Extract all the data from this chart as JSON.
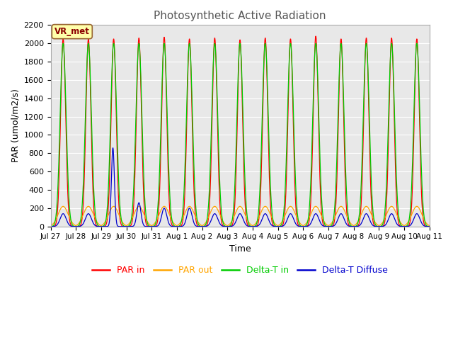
{
  "title": "Photosynthetic Active Radiation",
  "xlabel": "Time",
  "ylabel": "PAR (umol/m2/s)",
  "ylim": [
    0,
    2200
  ],
  "yticks": [
    0,
    200,
    400,
    600,
    800,
    1000,
    1200,
    1400,
    1600,
    1800,
    2000,
    2200
  ],
  "fig_bg": "#ffffff",
  "plot_bg": "#e8e8e8",
  "grid_color": "#ffffff",
  "legend_labels": [
    "PAR in",
    "PAR out",
    "Delta-T in",
    "Delta-T Diffuse"
  ],
  "line_colors": [
    "#ff0000",
    "#ffa500",
    "#00cc00",
    "#0000cd"
  ],
  "vr_met_label": "VR_met",
  "num_days": 15,
  "title_fontsize": 11,
  "tick_labels": [
    "Jul 27",
    "Jul 28",
    "Jul 29",
    "Jul 30",
    "Jul 31",
    "Aug 1",
    "Aug 2",
    "Aug 3",
    "Aug 4",
    "Aug 5",
    "Aug 6",
    "Aug 7",
    "Aug 8",
    "Aug 9",
    "Aug 10",
    "Aug 11"
  ]
}
